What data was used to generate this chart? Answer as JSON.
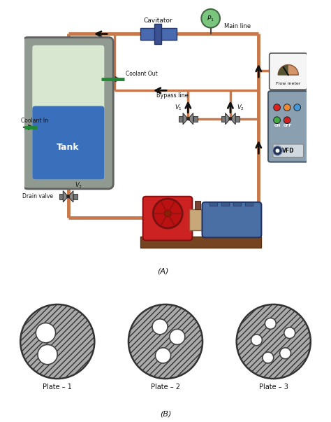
{
  "bg_color": "#ffffff",
  "pipe_color": "#c8784a",
  "pipe_lw": 3.5,
  "arrow_color": "#111111",
  "plate_labels": [
    "Plate – 1",
    "Plate – 2",
    "Plate – 3"
  ],
  "tank_color_outer": "#8a9a8a",
  "tank_color_inner_top": "#d8e8d0",
  "tank_color_inner_water": "#3a6fbb",
  "cavitator_color": "#3a5fa0",
  "pressure_gauge_color": "#7bc67e",
  "flow_meter_color": "#d4956a",
  "pump_red": "#cc2222",
  "pump_blue": "#4a6fa5",
  "vfd_color": "#8a9faf"
}
